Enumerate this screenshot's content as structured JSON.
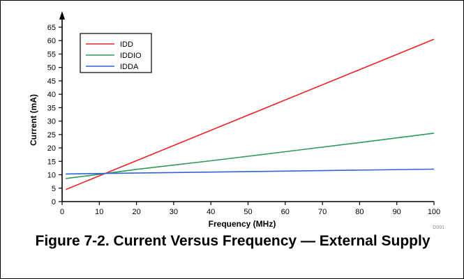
{
  "chart_data": {
    "type": "line",
    "title": "",
    "xlabel": "Frequency (MHz)",
    "ylabel": "Current (mA)",
    "xlim": [
      0,
      100
    ],
    "ylim": [
      0,
      65
    ],
    "x_ticks": [
      0,
      10,
      20,
      30,
      40,
      50,
      60,
      70,
      80,
      90,
      100
    ],
    "y_ticks": [
      0,
      5,
      10,
      15,
      20,
      25,
      30,
      35,
      40,
      45,
      50,
      55,
      60,
      65
    ],
    "grid": false,
    "legend": "top-left",
    "series": [
      {
        "name": "IDD",
        "color": "#e8232a",
        "x": [
          1,
          100
        ],
        "y": [
          4.5,
          60.5
        ]
      },
      {
        "name": "IDDIO",
        "color": "#2e9a5c",
        "x": [
          1,
          12,
          20,
          40,
          60,
          80,
          100
        ],
        "y": [
          8.6,
          10.5,
          12,
          15.2,
          18.6,
          22,
          25.5
        ]
      },
      {
        "name": "IDDA",
        "color": "#3162d6",
        "x": [
          1,
          100
        ],
        "y": [
          10.3,
          12.1
        ]
      }
    ]
  },
  "figure_id": "D001",
  "caption": "Figure 7-2. Current Versus Frequency — External Supply"
}
